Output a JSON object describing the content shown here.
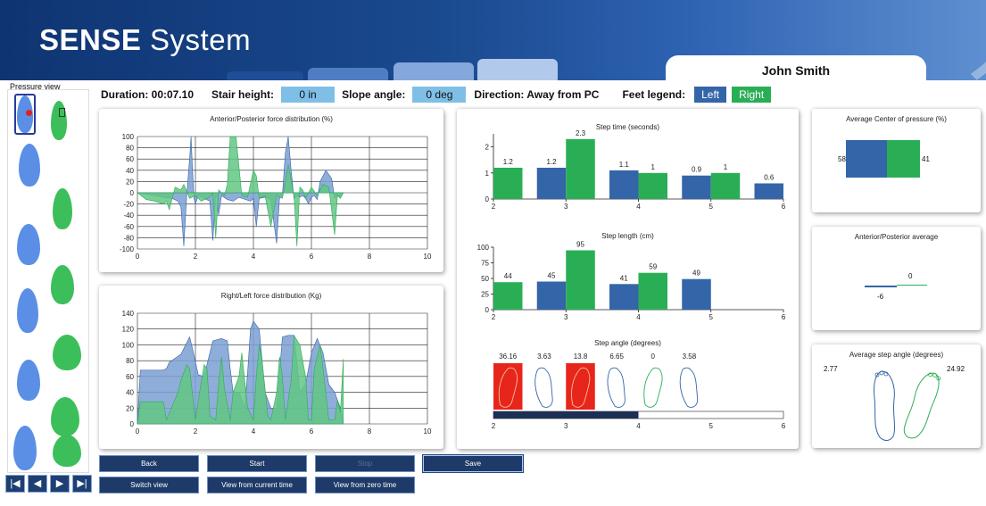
{
  "app": {
    "title_bold": "SENSE",
    "title_rest": " System",
    "user_name": "John Smith"
  },
  "pressure_view": {
    "label": "Pressure view"
  },
  "info": {
    "duration_label": "Duration: 00:07.10",
    "stair_label": "Stair height:",
    "stair_value": "0 in",
    "slope_label": "Slope angle:",
    "slope_value": "0 deg",
    "direction_label": "Direction: Away from PC",
    "legend_label": "Feet legend:",
    "legend_left": "Left",
    "legend_right": "Right"
  },
  "colors": {
    "left": "#3465a8",
    "right": "#2aae55",
    "left_light": "#7b9fd2",
    "right_light": "#62c784",
    "button": "#1e3a68"
  },
  "charts": {
    "ap_force": {
      "title": "Anterior/Posterior force distribution (%)",
      "xticks": [
        "0",
        "2",
        "4",
        "6",
        "8",
        "10"
      ],
      "yticks": [
        "100",
        "80",
        "60",
        "40",
        "20",
        "0",
        "-20",
        "-40",
        "-60",
        "-80",
        "-100"
      ]
    },
    "rl_force": {
      "title": "Right/Left force distribution (Kg)",
      "xticks": [
        "0",
        "2",
        "4",
        "6",
        "8",
        "10"
      ],
      "yticks": [
        "140",
        "120",
        "100",
        "80",
        "60",
        "40",
        "20",
        "0"
      ]
    },
    "step_time": {
      "title": "Step time (seconds)",
      "xticks": [
        "2",
        "3",
        "4",
        "5",
        "6"
      ],
      "yticks": [
        "2",
        "1",
        "0"
      ],
      "labels": [
        "1.2",
        "1.2",
        "2.3",
        "1.1",
        "1",
        "0.9",
        "1",
        "0.6"
      ]
    },
    "step_length": {
      "title": "Step length (cm)",
      "xticks": [
        "2",
        "3",
        "4",
        "5",
        "6"
      ],
      "yticks": [
        "100",
        "75",
        "50",
        "25",
        "0"
      ],
      "labels": [
        "44",
        "45",
        "95",
        "41",
        "59",
        "49"
      ]
    },
    "step_angle": {
      "title": "Step angle (degrees)",
      "xticks": [
        "2",
        "3",
        "4",
        "5",
        "6"
      ],
      "labels": [
        "36.16",
        "3.63",
        "13.8",
        "6.65",
        "0",
        "3.58"
      ]
    },
    "avg_cop": {
      "title": "Average Center of pressure (%)",
      "left_value": "58",
      "right_value": "41"
    },
    "ap_average": {
      "title": "Anterior/Posterior average",
      "left_value": "-6",
      "right_value": "0"
    },
    "avg_step_angle": {
      "title": "Average step angle (degrees)",
      "left_value": "2.77",
      "right_value": "24.92"
    }
  },
  "chart_data": [
    {
      "type": "area",
      "title": "Anterior/Posterior force distribution (%)",
      "xlim": [
        0,
        10
      ],
      "ylim": [
        -100,
        100
      ],
      "series": [
        {
          "name": "Left",
          "color": "#3465a8",
          "x": [
            0,
            0.3,
            0.6,
            0.9,
            1.2,
            1.4,
            1.5,
            1.6,
            1.7,
            1.8,
            1.85,
            1.9,
            1.95,
            2.0,
            2.1,
            2.5,
            2.6,
            2.7,
            2.75,
            2.8,
            2.9,
            3.1,
            3.3,
            3.5,
            3.9,
            4.0,
            4.1,
            4.2,
            4.4,
            4.6,
            4.8,
            4.9,
            5.0,
            5.1,
            5.2,
            5.3,
            5.4,
            5.5,
            5.6,
            5.7,
            5.8,
            5.9,
            6.0,
            6.1,
            6.2,
            6.3,
            6.5,
            6.7,
            6.8,
            6.9,
            7.0,
            7.1
          ],
          "y": [
            0,
            -3,
            -5,
            -8,
            -10,
            -15,
            -25,
            -95,
            -5,
            60,
            100,
            40,
            -10,
            -20,
            -5,
            -15,
            -85,
            -5,
            -10,
            -40,
            -5,
            -12,
            -15,
            -8,
            -15,
            -10,
            -60,
            -10,
            -8,
            -12,
            -90,
            -10,
            -5,
            70,
            100,
            40,
            -10,
            -5,
            -8,
            -5,
            -10,
            -20,
            -8,
            -5,
            -12,
            20,
            40,
            25,
            -10,
            -5,
            -8,
            0
          ]
        },
        {
          "name": "Right",
          "color": "#2aae55",
          "x": [
            0,
            0.3,
            0.6,
            0.9,
            1.0,
            1.1,
            1.2,
            1.3,
            1.5,
            1.6,
            1.8,
            2.0,
            2.2,
            2.4,
            2.5,
            2.6,
            2.7,
            2.8,
            3.0,
            3.1,
            3.2,
            3.4,
            3.6,
            3.8,
            4.0,
            4.1,
            4.2,
            4.4,
            4.6,
            4.8,
            5.0,
            5.1,
            5.2,
            5.4,
            5.5,
            5.6,
            5.7,
            5.8,
            6.0,
            6.2,
            6.4,
            6.6,
            6.8,
            6.9,
            7.0,
            7.1
          ],
          "y": [
            0,
            -12,
            -15,
            -20,
            -15,
            -30,
            -10,
            10,
            5,
            15,
            -10,
            -5,
            -15,
            -10,
            -8,
            0,
            -80,
            5,
            -5,
            15,
            100,
            100,
            -5,
            -8,
            40,
            30,
            -10,
            -5,
            -60,
            -5,
            -10,
            20,
            50,
            -5,
            -95,
            10,
            5,
            -10,
            10,
            -5,
            15,
            10,
            -75,
            -5,
            -10,
            0
          ]
        }
      ]
    },
    {
      "type": "area",
      "title": "Right/Left force distribution (Kg)",
      "xlim": [
        0,
        10
      ],
      "ylim": [
        0,
        140
      ],
      "series": [
        {
          "name": "Left",
          "color": "#3465a8",
          "x": [
            0,
            0.1,
            0.9,
            1.0,
            1.1,
            1.5,
            1.8,
            1.9,
            2.1,
            2.3,
            2.6,
            2.9,
            3.1,
            3.2,
            3.3,
            3.5,
            3.7,
            3.8,
            3.9,
            4.0,
            4.2,
            4.4,
            4.6,
            4.8,
            5.0,
            5.2,
            5.4,
            5.6,
            5.8,
            6.0,
            6.2,
            6.4,
            6.6,
            6.8,
            7.0,
            7.1
          ],
          "y": [
            0,
            68,
            68,
            70,
            78,
            88,
            110,
            95,
            62,
            60,
            105,
            108,
            105,
            70,
            40,
            40,
            20,
            65,
            120,
            130,
            120,
            40,
            20,
            20,
            110,
            112,
            112,
            40,
            50,
            90,
            108,
            90,
            50,
            40,
            20,
            0
          ]
        },
        {
          "name": "Right",
          "color": "#2aae55",
          "x": [
            0,
            0.1,
            0.9,
            1.0,
            1.4,
            1.5,
            1.7,
            1.8,
            2.0,
            2.1,
            2.3,
            2.4,
            2.5,
            2.7,
            2.8,
            2.9,
            3.0,
            3.2,
            3.3,
            3.5,
            3.6,
            3.8,
            4.0,
            4.1,
            4.2,
            4.3,
            4.5,
            4.6,
            4.8,
            4.9,
            5.0,
            5.1,
            5.3,
            5.4,
            5.6,
            5.8,
            5.9,
            6.0,
            6.1,
            6.3,
            6.4,
            6.6,
            6.8,
            6.9,
            7.0,
            7.1
          ],
          "y": [
            0,
            28,
            28,
            5,
            40,
            55,
            75,
            70,
            5,
            30,
            75,
            70,
            10,
            5,
            50,
            85,
            45,
            5,
            40,
            60,
            90,
            20,
            5,
            60,
            100,
            80,
            10,
            5,
            40,
            85,
            60,
            5,
            55,
            112,
            100,
            60,
            5,
            5,
            70,
            100,
            70,
            5,
            5,
            30,
            15,
            82
          ]
        }
      ]
    },
    {
      "type": "bar",
      "title": "Step time (seconds)",
      "xlim": [
        2,
        6
      ],
      "ylim": [
        0,
        2.5
      ],
      "bars": [
        {
          "foot": "Right",
          "x": 2.0,
          "value": 1.2
        },
        {
          "foot": "Left",
          "x": 2.6,
          "value": 1.2
        },
        {
          "foot": "Right",
          "x": 3.0,
          "value": 2.3
        },
        {
          "foot": "Left",
          "x": 3.6,
          "value": 1.1
        },
        {
          "foot": "Right",
          "x": 4.0,
          "value": 1
        },
        {
          "foot": "Left",
          "x": 4.6,
          "value": 0.9
        },
        {
          "foot": "Right",
          "x": 5.0,
          "value": 1
        },
        {
          "foot": "Left",
          "x": 5.6,
          "value": 0.6
        }
      ]
    },
    {
      "type": "bar",
      "title": "Step length (cm)",
      "xlim": [
        2,
        6
      ],
      "ylim": [
        0,
        100
      ],
      "bars": [
        {
          "foot": "Right",
          "x": 2.0,
          "value": 44
        },
        {
          "foot": "Left",
          "x": 2.6,
          "value": 45
        },
        {
          "foot": "Right",
          "x": 3.0,
          "value": 95
        },
        {
          "foot": "Left",
          "x": 3.6,
          "value": 41
        },
        {
          "foot": "Right",
          "x": 4.0,
          "value": 59
        },
        {
          "foot": "Left",
          "x": 4.6,
          "value": 49
        }
      ]
    },
    {
      "type": "bar",
      "title": "Step angle (degrees)",
      "xlim": [
        2,
        6
      ],
      "values": [
        36.16,
        3.63,
        13.8,
        6.65,
        0,
        3.58
      ],
      "foot": [
        "Right",
        "Left",
        "Right",
        "Left",
        "Right",
        "Left"
      ],
      "flagged": [
        true,
        false,
        true,
        false,
        false,
        false
      ],
      "progress": 0.5
    },
    {
      "type": "bar",
      "title": "Average Center of pressure (%)",
      "categories": [
        "Left",
        "Right"
      ],
      "values": [
        58,
        41
      ]
    },
    {
      "type": "bar",
      "title": "Anterior/Posterior average",
      "categories": [
        "Left",
        "Right"
      ],
      "values": [
        -6,
        0
      ]
    },
    {
      "type": "other",
      "title": "Average step angle (degrees)",
      "categories": [
        "Left",
        "Right"
      ],
      "values": [
        2.77,
        24.92
      ]
    }
  ],
  "buttons": {
    "back": "Back",
    "start": "Start",
    "stop": "Stop",
    "save": "Save",
    "switch_view": "Switch view",
    "view_current": "View from current time",
    "view_zero": "View from zero time"
  }
}
